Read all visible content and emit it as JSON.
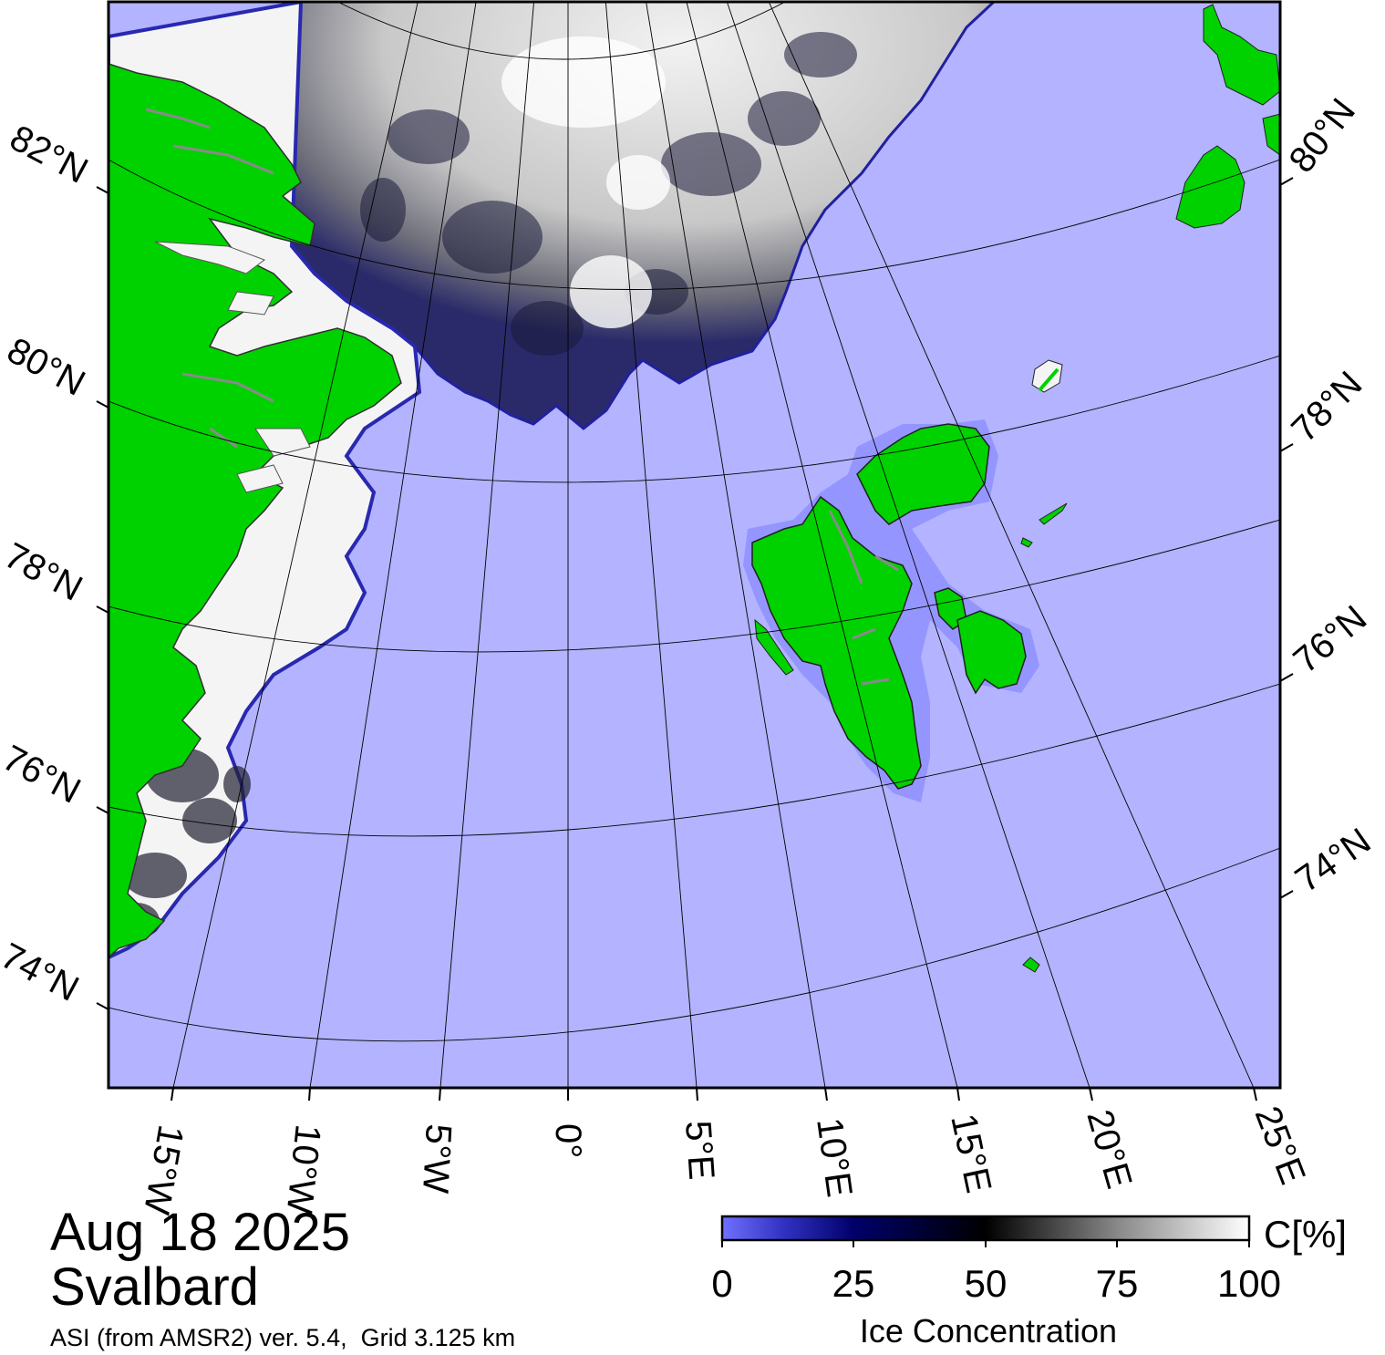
{
  "map": {
    "date": "Aug 18 2025",
    "region": "Svalbard",
    "source": "ASI (from AMSR2) ver. 5.4,  Grid 3.125 km",
    "left_lat_labels": [
      "82°N",
      "80°N",
      "78°N",
      "76°N",
      "74°N"
    ],
    "right_lat_labels": [
      "80°N",
      "78°N",
      "76°N",
      "74°N"
    ],
    "lon_labels": [
      "15°W",
      "10°W",
      "5°W",
      "0°",
      "5°E",
      "10°E",
      "15°E",
      "20°E",
      "25°E"
    ]
  },
  "colorbar": {
    "unit": "C[%]",
    "ticks": [
      "0",
      "25",
      "50",
      "75",
      "100"
    ],
    "label": "Ice Concentration"
  },
  "colors": {
    "ocean": "#b3b3ff",
    "land": "#00d200",
    "ice_low": "#6a6aff",
    "ice_mid": "#00005a",
    "ice_half": "#000000",
    "ice_full": "#ffffff",
    "glacier_edge": "#8a8a8a"
  }
}
